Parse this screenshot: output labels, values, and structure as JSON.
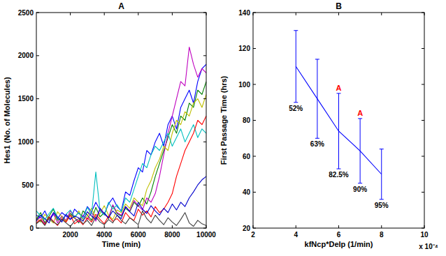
{
  "chart_data": [
    {
      "type": "line",
      "title": "A",
      "x_label": "Time (min)",
      "y_label": "Hes1 (No. of Molecules)",
      "x": [
        0,
        250,
        500,
        750,
        1000,
        1250,
        1500,
        1750,
        2000,
        2250,
        2500,
        2750,
        3000,
        3250,
        3500,
        3750,
        4000,
        4250,
        4500,
        4750,
        5000,
        5250,
        5500,
        5750,
        6000,
        6250,
        6500,
        6750,
        7000,
        7250,
        7500,
        7750,
        8000,
        8250,
        8500,
        8750,
        9000,
        9250,
        9500,
        9750,
        10000
      ],
      "xlim": [
        0,
        10000
      ],
      "xticks": [
        2000,
        4000,
        6000,
        8000,
        10000
      ],
      "ylim": [
        0,
        2500
      ],
      "yticks": [
        0,
        500,
        1000,
        1500,
        2000,
        2500
      ],
      "series": [
        {
          "color": "#0000ff",
          "values": [
            150,
            120,
            200,
            90,
            160,
            110,
            180,
            140,
            100,
            220,
            170,
            130,
            250,
            190,
            300,
            210,
            160,
            280,
            350,
            250,
            200,
            420,
            380,
            550,
            700,
            650,
            900,
            850,
            1000,
            1100,
            950,
            1200,
            1300,
            1150,
            1400,
            1500,
            1600,
            1450,
            1700,
            1850,
            1900
          ]
        },
        {
          "color": "#008000",
          "values": [
            100,
            180,
            60,
            140,
            220,
            90,
            130,
            80,
            170,
            120,
            60,
            200,
            150,
            90,
            240,
            130,
            180,
            110,
            260,
            170,
            140,
            230,
            190,
            300,
            250,
            350,
            280,
            420,
            600,
            750,
            900,
            1050,
            1200,
            1100,
            1300,
            1250,
            1450,
            1400,
            1600,
            1550,
            1700
          ]
        },
        {
          "color": "#bf00bf",
          "values": [
            80,
            130,
            50,
            110,
            170,
            60,
            140,
            90,
            200,
            120,
            70,
            150,
            100,
            190,
            80,
            220,
            160,
            120,
            270,
            180,
            150,
            250,
            200,
            320,
            260,
            210,
            350,
            300,
            400,
            600,
            850,
            1100,
            1300,
            1500,
            1700,
            1650,
            2100,
            1900,
            1750,
            1850,
            1800
          ]
        },
        {
          "color": "#bfbf00",
          "values": [
            120,
            70,
            160,
            100,
            60,
            190,
            130,
            80,
            150,
            110,
            200,
            90,
            140,
            230,
            120,
            170,
            260,
            150,
            100,
            210,
            180,
            280,
            230,
            350,
            300,
            260,
            450,
            550,
            700,
            800,
            950,
            900,
            1100,
            1250,
            1200,
            1350,
            1300,
            1450,
            1500,
            1400,
            1550
          ]
        },
        {
          "color": "#00bfbf",
          "values": [
            200,
            140,
            100,
            170,
            230,
            120,
            90,
            160,
            210,
            130,
            180,
            110,
            240,
            160,
            650,
            200,
            150,
            300,
            220,
            270,
            190,
            350,
            300,
            450,
            600,
            750,
            700,
            850,
            950,
            900,
            1000,
            1100,
            950,
            1050,
            1150,
            1000,
            1100,
            1200,
            1050,
            1150,
            1100
          ]
        },
        {
          "color": "#ff0000",
          "values": [
            60,
            100,
            40,
            130,
            80,
            30,
            110,
            70,
            150,
            50,
            90,
            40,
            120,
            70,
            160,
            100,
            50,
            140,
            80,
            110,
            60,
            180,
            120,
            90,
            220,
            150,
            200,
            130,
            250,
            180,
            220,
            300,
            400,
            600,
            750,
            900,
            1000,
            1100,
            1250,
            1200,
            1300
          ]
        },
        {
          "color": "#404040",
          "values": [
            50,
            90,
            30,
            120,
            70,
            40,
            100,
            60,
            20,
            80,
            110,
            50,
            90,
            30,
            130,
            70,
            40,
            100,
            60,
            150,
            90,
            50,
            120,
            80,
            40,
            200,
            110,
            60,
            150,
            90,
            40,
            120,
            70,
            30,
            100,
            180,
            60,
            20,
            90,
            50,
            30
          ]
        },
        {
          "color": "#0000cc",
          "values": [
            90,
            150,
            110,
            60,
            180,
            130,
            70,
            160,
            100,
            140,
            120,
            80,
            190,
            140,
            100,
            230,
            170,
            120,
            200,
            150,
            110,
            250,
            190,
            140,
            300,
            220,
            170,
            260,
            200,
            150,
            230,
            180,
            280,
            210,
            300,
            250,
            350,
            420,
            500,
            560,
            600
          ]
        }
      ]
    },
    {
      "type": "line",
      "title": "B",
      "x_label": "kfNcp*Delp (1/min)",
      "y_label": "First Passage Time (hrs)",
      "x_multiplier": "x 10⁻⁴",
      "x": [
        4,
        5,
        6,
        7,
        8
      ],
      "values": [
        110,
        92,
        74,
        63,
        50
      ],
      "errors": [
        20,
        22,
        21,
        18,
        14
      ],
      "point_labels": [
        "52%",
        "63%",
        "82.5%",
        "90%",
        "95%"
      ],
      "flags": [
        null,
        null,
        "A",
        "A",
        null
      ],
      "flag_color": "#ff0000",
      "color": "#0000ff",
      "xlim": [
        2,
        10
      ],
      "xticks": [
        2,
        4,
        6,
        8,
        10
      ],
      "ylim": [
        20,
        140
      ],
      "yticks": [
        20,
        40,
        60,
        80,
        100,
        120,
        140
      ]
    }
  ]
}
